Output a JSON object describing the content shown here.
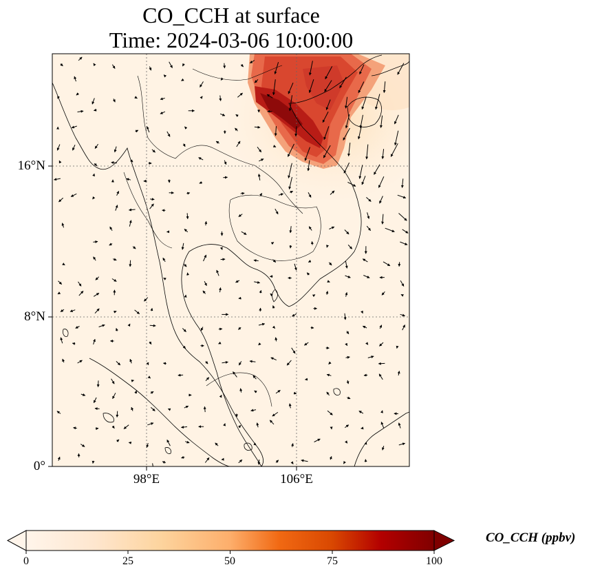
{
  "map": {
    "title_line1": "CO_CCH at surface",
    "title_line2": "Time: 2024-03-06 10:00:00",
    "lat_labels": [
      "16°N",
      "8°N",
      "0°"
    ],
    "lon_labels": [
      "98°E",
      "106°E"
    ],
    "colormap_stops": [
      "#fff5eb",
      "#fdd49e",
      "#fdae6b",
      "#f16913",
      "#d94801",
      "#a50f15",
      "#7f0000"
    ],
    "colorbar": {
      "label": "CO_CCH (ppbv)",
      "ticks": [
        "0",
        "25",
        "50",
        "75",
        "100"
      ],
      "min": 0,
      "max": 100
    },
    "extent": {
      "lon_min": 93,
      "lon_max": 112,
      "lat_min": 0,
      "lat_max": 22
    }
  }
}
